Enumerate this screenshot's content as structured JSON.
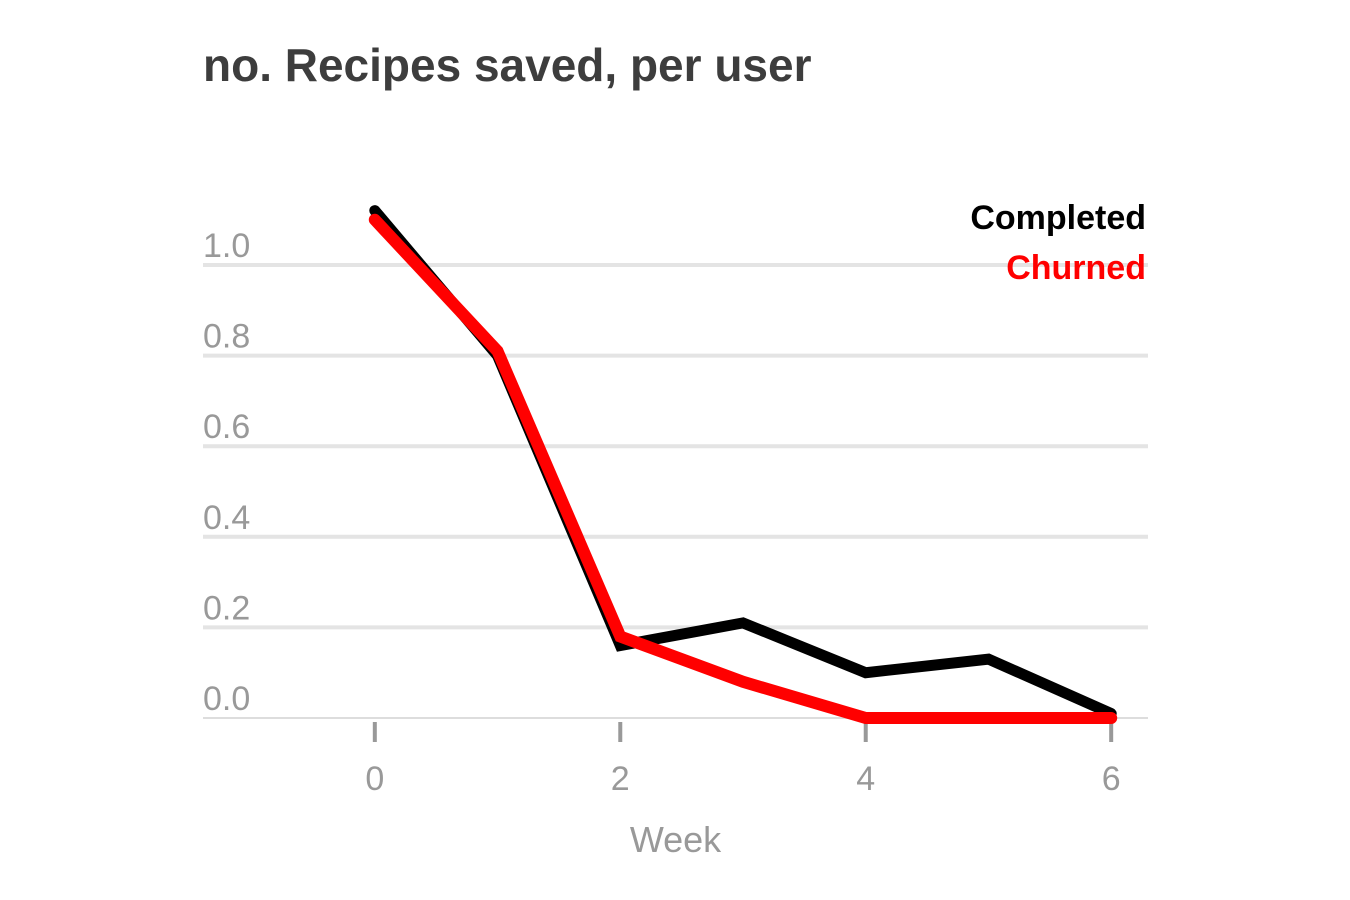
{
  "chart_data": {
    "type": "line",
    "title": "no. Recipes saved, per user",
    "xlabel": "Week",
    "ylabel": "",
    "x": [
      0,
      1,
      2,
      3,
      4,
      5,
      6
    ],
    "xlim": [
      -1.4,
      6.3
    ],
    "ylim": [
      0,
      1.0
    ],
    "xticks": [
      0,
      2,
      4,
      6
    ],
    "yticks": [
      0.0,
      0.2,
      0.4,
      0.6,
      0.8,
      1.0
    ],
    "ytick_labels": [
      "0.0",
      "0.2",
      "0.4",
      "0.6",
      "0.8",
      "1.0"
    ],
    "xtick_labels": [
      "0",
      "2",
      "4",
      "6"
    ],
    "grid": "horizontal",
    "legend_position": "top-right",
    "series": [
      {
        "name": "Completed",
        "color": "#000000",
        "values": [
          1.12,
          0.8,
          0.16,
          0.21,
          0.1,
          0.13,
          0.01
        ]
      },
      {
        "name": "Churned",
        "color": "#ff0000",
        "values": [
          1.1,
          0.81,
          0.18,
          0.08,
          0.0,
          0.0,
          0.0
        ]
      }
    ]
  }
}
